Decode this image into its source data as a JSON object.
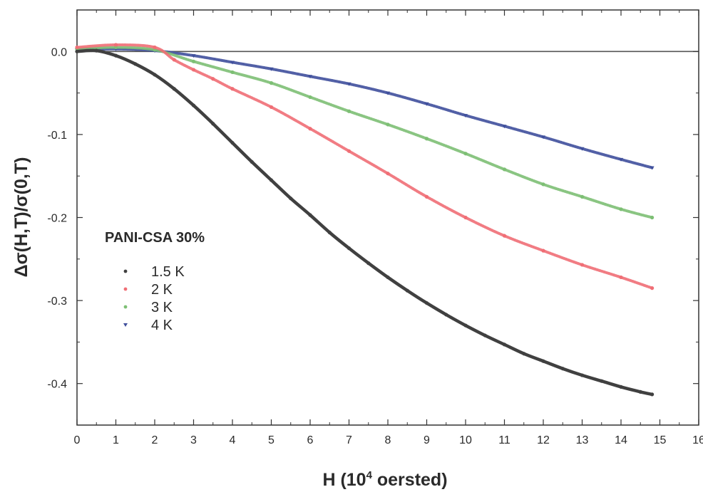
{
  "chart_data": {
    "type": "scatter",
    "xlabel_main": "H (10",
    "xlabel_sup": "4",
    "xlabel_tail": " oersted)",
    "ylabel": "Δσ(H,T)/σ(0,T)",
    "annotation": "PANI-CSA 30%",
    "xlim": [
      0,
      16
    ],
    "ylim": [
      -0.45,
      0.05
    ],
    "x_ticks": [
      0,
      1,
      2,
      3,
      4,
      5,
      6,
      7,
      8,
      9,
      10,
      11,
      12,
      13,
      14,
      15,
      16
    ],
    "x_tick_labels": [
      "0",
      "1",
      "2",
      "3",
      "4",
      "5",
      "6",
      "7",
      "8",
      "9",
      "10",
      "11",
      "12",
      "13",
      "14",
      "15",
      "16"
    ],
    "y_ticks": [
      0.0,
      -0.1,
      -0.2,
      -0.3,
      -0.4
    ],
    "y_tick_labels": [
      "0.0",
      "-0.1",
      "-0.2",
      "-0.3",
      "-0.4"
    ],
    "reference_line_y": 0.0,
    "grid": false,
    "legend_position": "middle-left",
    "series": [
      {
        "name": "1.5 K",
        "color": "#404040",
        "marker": "dot",
        "x": [
          0.0,
          0.5,
          1.0,
          1.5,
          2.0,
          2.5,
          3.0,
          3.5,
          4.0,
          4.5,
          5.0,
          5.5,
          6.0,
          6.5,
          7.0,
          7.5,
          8.0,
          8.5,
          9.0,
          9.5,
          10.0,
          10.5,
          11.0,
          11.5,
          12.0,
          12.5,
          13.0,
          13.5,
          14.0,
          14.5,
          14.8
        ],
        "y": [
          0.0,
          0.001,
          -0.005,
          -0.015,
          -0.028,
          -0.045,
          -0.065,
          -0.087,
          -0.11,
          -0.133,
          -0.155,
          -0.177,
          -0.197,
          -0.218,
          -0.237,
          -0.255,
          -0.272,
          -0.288,
          -0.303,
          -0.317,
          -0.33,
          -0.342,
          -0.353,
          -0.364,
          -0.373,
          -0.382,
          -0.39,
          -0.397,
          -0.404,
          -0.41,
          -0.413
        ]
      },
      {
        "name": "2 K",
        "color": "#f06e75",
        "marker": "dot",
        "x": [
          0.0,
          1.0,
          2.0,
          2.5,
          3.0,
          3.5,
          4.0,
          5.0,
          6.0,
          7.0,
          8.0,
          9.0,
          10.0,
          11.0,
          12.0,
          13.0,
          14.0,
          14.8
        ],
        "y": [
          0.005,
          0.008,
          0.005,
          -0.01,
          -0.022,
          -0.033,
          -0.045,
          -0.067,
          -0.093,
          -0.12,
          -0.147,
          -0.175,
          -0.2,
          -0.222,
          -0.24,
          -0.257,
          -0.272,
          -0.285
        ]
      },
      {
        "name": "3 K",
        "color": "#7dbf74",
        "marker": "dot",
        "x": [
          0.0,
          1.0,
          2.0,
          3.0,
          4.0,
          5.0,
          6.0,
          7.0,
          8.0,
          9.0,
          10.0,
          11.0,
          12.0,
          13.0,
          14.0,
          14.8
        ],
        "y": [
          0.003,
          0.005,
          0.002,
          -0.012,
          -0.025,
          -0.038,
          -0.055,
          -0.072,
          -0.088,
          -0.105,
          -0.123,
          -0.142,
          -0.16,
          -0.175,
          -0.19,
          -0.2
        ]
      },
      {
        "name": "4 K",
        "color": "#3f4f9c",
        "marker": "triangle-down",
        "x": [
          0.0,
          1.0,
          2.0,
          3.0,
          4.0,
          5.0,
          6.0,
          7.0,
          8.0,
          9.0,
          10.0,
          11.0,
          12.0,
          13.0,
          14.0,
          14.8
        ],
        "y": [
          0.002,
          0.003,
          0.001,
          -0.005,
          -0.013,
          -0.021,
          -0.03,
          -0.039,
          -0.05,
          -0.063,
          -0.077,
          -0.09,
          -0.103,
          -0.117,
          -0.13,
          -0.14
        ]
      }
    ]
  }
}
